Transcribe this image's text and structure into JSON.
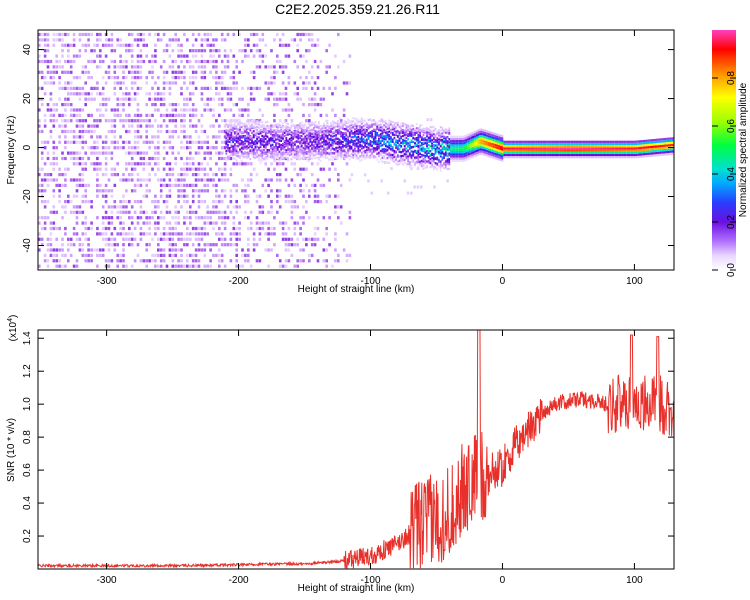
{
  "title": "C2E2.2025.359.21.26.R11",
  "colors": {
    "snr_line": "#e8302a",
    "colormap": [
      "#ffffff",
      "#e9d6ff",
      "#c890ff",
      "#8a2be2",
      "#5a00d8",
      "#2a3cff",
      "#00aaff",
      "#00e0d0",
      "#00ff40",
      "#a0ff00",
      "#ffff00",
      "#ff9000",
      "#ff0000",
      "#ff40c0"
    ]
  },
  "chart_data": [
    {
      "type": "heatmap",
      "xlabel": "Height of straight line (km)",
      "ylabel": "Frequency (Hz)",
      "xlim": [
        -352,
        130
      ],
      "ylim": [
        -50,
        48
      ],
      "xticks": [
        -300,
        -200,
        -100,
        0,
        100
      ],
      "yticks": [
        -40,
        -20,
        0,
        20,
        40
      ],
      "colorbar": {
        "label": "Normalized spectral amplitude",
        "range": [
          0,
          1
        ],
        "ticks": [
          "0.0",
          "0.2",
          "0.4",
          "0.6",
          "0.8"
        ],
        "tick_values": [
          0.0,
          0.2,
          0.4,
          0.6,
          0.8
        ]
      },
      "ridge": [
        {
          "x": -200,
          "freq": 3,
          "amplitude": 0.35
        },
        {
          "x": -150,
          "freq": 3,
          "amplitude": 0.3
        },
        {
          "x": -100,
          "freq": 4,
          "amplitude": 0.45
        },
        {
          "x": -75,
          "freq": 2,
          "amplitude": 0.5
        },
        {
          "x": -50,
          "freq": 0,
          "amplitude": 0.55
        },
        {
          "x": -30,
          "freq": 0,
          "amplitude": 0.6
        },
        {
          "x": -17,
          "freq": 3,
          "amplitude": 0.85
        },
        {
          "x": 0,
          "freq": 0,
          "amplitude": 0.95
        },
        {
          "x": 50,
          "freq": 0,
          "amplitude": 1.0
        },
        {
          "x": 100,
          "freq": 0,
          "amplitude": 0.95
        },
        {
          "x": 130,
          "freq": 1.5,
          "amplitude": 0.9
        }
      ]
    },
    {
      "type": "line",
      "xlabel": "Height of straight line (km)",
      "ylabel": "SNR (10 * v/v)",
      "y_scale_label": "(x10",
      "y_scale_exponent": "4",
      "xlim": [
        -352,
        130
      ],
      "ylim": [
        0,
        1.45
      ],
      "xticks": [
        -300,
        -200,
        -100,
        0,
        100
      ],
      "yticks": [
        0.2,
        0.4,
        0.6,
        0.8,
        1.0,
        1.2,
        1.4
      ],
      "ytick_labels": [
        "0.2",
        "0.4",
        "0.6",
        "0.8",
        "1.0",
        "1.2",
        "1.4"
      ],
      "series": [
        {
          "x": [
            -352,
            -300,
            -250,
            -200,
            -180,
            -150,
            -120,
            -100,
            -80,
            -60,
            -50,
            -40,
            -30,
            -20,
            -10,
            0,
            10,
            20,
            30,
            40,
            50,
            60,
            70,
            80,
            90,
            100,
            110,
            120,
            130
          ],
          "values": [
            0.02,
            0.02,
            0.02,
            0.025,
            0.03,
            0.03,
            0.05,
            0.08,
            0.15,
            0.28,
            0.3,
            0.35,
            0.48,
            0.55,
            0.58,
            0.62,
            0.75,
            0.85,
            0.95,
            1.0,
            1.02,
            1.03,
            1.02,
            1.0,
            1.0,
            1.02,
            1.0,
            1.0,
            0.97
          ]
        }
      ]
    }
  ]
}
